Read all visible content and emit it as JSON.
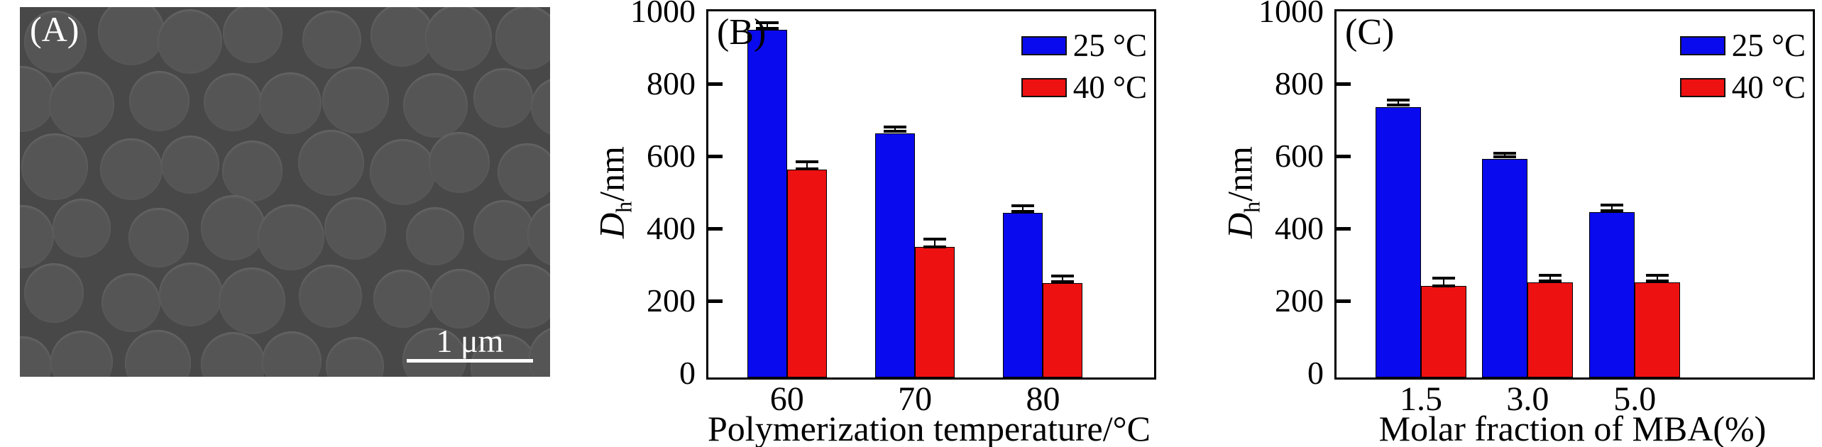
{
  "figure": {
    "panels": {
      "a": {
        "label": "(A)",
        "scale_bar": "1 μm",
        "sem": {
          "background": "#484848",
          "circle_fill": "#555555",
          "circle_rim": "#828282",
          "rows": 6,
          "cols": 9,
          "row_spacing": 92,
          "col_spacing": 96,
          "diameter": 88
        }
      }
    }
  },
  "chart_data": [
    {
      "id": "B",
      "type": "bar",
      "label": "(B)",
      "categories": [
        "60",
        "70",
        "80"
      ],
      "series": [
        {
          "name": "25 °C",
          "color": "#0A0AEE",
          "values": [
            960,
            675,
            455
          ],
          "errors": [
            8,
            6,
            8
          ]
        },
        {
          "name": "40 °C",
          "color": "#EE1111",
          "values": [
            575,
            360,
            260
          ],
          "errors": [
            10,
            10,
            8
          ]
        }
      ],
      "xlabel": "Polymerization temperature/°C",
      "ylabel_d": "D",
      "ylabel_sub": "h",
      "ylabel_unit": "/nm",
      "ylim": [
        0,
        1000
      ],
      "yticks": [
        0,
        200,
        400,
        600,
        800,
        1000
      ],
      "grid": false,
      "legend_position": "top-right"
    },
    {
      "id": "C",
      "type": "bar",
      "label": "(C)",
      "categories": [
        "1.5",
        "3.0",
        "5.0"
      ],
      "series": [
        {
          "name": "25 °C",
          "color": "#0A0AEE",
          "values": [
            748,
            603,
            457
          ],
          "errors": [
            6,
            5,
            8
          ]
        },
        {
          "name": "40 °C",
          "color": "#EE1111",
          "values": [
            252,
            262,
            262
          ],
          "errors": [
            10,
            8,
            8
          ]
        }
      ],
      "xlabel": "Molar fraction of MBA(%)",
      "ylabel_d": "D",
      "ylabel_sub": "h",
      "ylabel_unit": "/nm",
      "ylim": [
        0,
        1000
      ],
      "yticks": [
        0,
        200,
        400,
        600,
        800,
        1000
      ],
      "grid": false,
      "legend_position": "top-right"
    }
  ]
}
